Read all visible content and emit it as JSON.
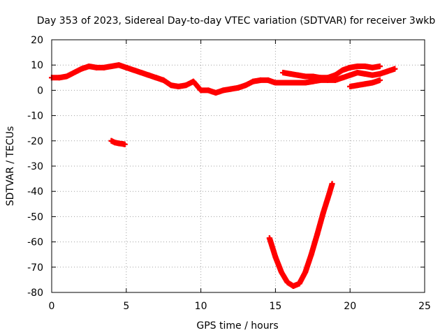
{
  "chart_data": {
    "type": "scatter",
    "title": "Day 353 of 2023, Sidereal Day-to-day VTEC variation (SDTVAR) for receiver 3wkb",
    "xlabel": "GPS time / hours",
    "ylabel": "SDTVAR / TECUs",
    "xlim": [
      0,
      25
    ],
    "ylim": [
      -80,
      20
    ],
    "xticks": [
      0,
      5,
      10,
      15,
      20,
      25
    ],
    "yticks": [
      20,
      10,
      0,
      -10,
      -20,
      -30,
      -40,
      -50,
      -60,
      -70,
      -80
    ],
    "grid": true,
    "marker": "plus",
    "series": [
      {
        "name": "main band",
        "color": "#ff0000",
        "x": [
          0,
          0.5,
          1,
          1.5,
          2,
          2.5,
          3,
          3.5,
          4,
          4.5,
          5,
          5.5,
          6,
          6.5,
          7,
          7.5,
          8,
          8.5,
          9,
          9.5,
          10,
          10.5,
          11,
          11.5,
          12,
          12.5,
          13,
          13.5,
          14,
          14.5,
          15,
          15.5,
          16,
          16.5,
          17,
          17.5,
          18,
          18.5,
          19,
          19.5,
          20,
          20.5,
          21,
          21.5,
          22,
          22.5,
          23
        ],
        "y": [
          5,
          5,
          5.5,
          7,
          8.5,
          9.5,
          9,
          9,
          9.5,
          10,
          9,
          8,
          7,
          6,
          5,
          4,
          2,
          1.5,
          2,
          3.5,
          0,
          0,
          -1,
          0,
          0.5,
          1,
          2,
          3.5,
          4,
          4,
          3,
          3,
          3,
          3,
          3,
          3.5,
          4,
          4,
          4,
          5,
          6,
          7,
          6.5,
          6,
          6.5,
          7.5,
          8.5
        ]
      },
      {
        "name": "upper secondary band",
        "color": "#ff0000",
        "x": [
          15.5,
          16,
          16.5,
          17,
          17.5,
          18,
          18.5,
          19,
          19.5,
          20,
          20.5,
          21,
          21.5,
          22
        ],
        "y": [
          7,
          6.5,
          6,
          5.5,
          5.5,
          5,
          5,
          6,
          8,
          9,
          9.5,
          9.5,
          9,
          9.5
        ]
      },
      {
        "name": "lower secondary band",
        "color": "#ff0000",
        "x": [
          20,
          20.5,
          21,
          21.5,
          22
        ],
        "y": [
          1.5,
          2,
          2.5,
          3,
          4
        ]
      },
      {
        "name": "short negative segment",
        "color": "#ff0000",
        "x": [
          4,
          4.25,
          4.5,
          4.75,
          4.9
        ],
        "y": [
          -20,
          -20.7,
          -21,
          -21.2,
          -21.4
        ]
      },
      {
        "name": "deep parabolic dip",
        "color": "#ff0000",
        "x": [
          14.6,
          15,
          15.4,
          15.8,
          16.2,
          16.6,
          17,
          17.4,
          17.8,
          18.2,
          18.6,
          18.8
        ],
        "y": [
          -58.5,
          -66,
          -72,
          -76,
          -77.5,
          -76.5,
          -72,
          -65,
          -57,
          -48.5,
          -41,
          -37
        ]
      }
    ]
  }
}
